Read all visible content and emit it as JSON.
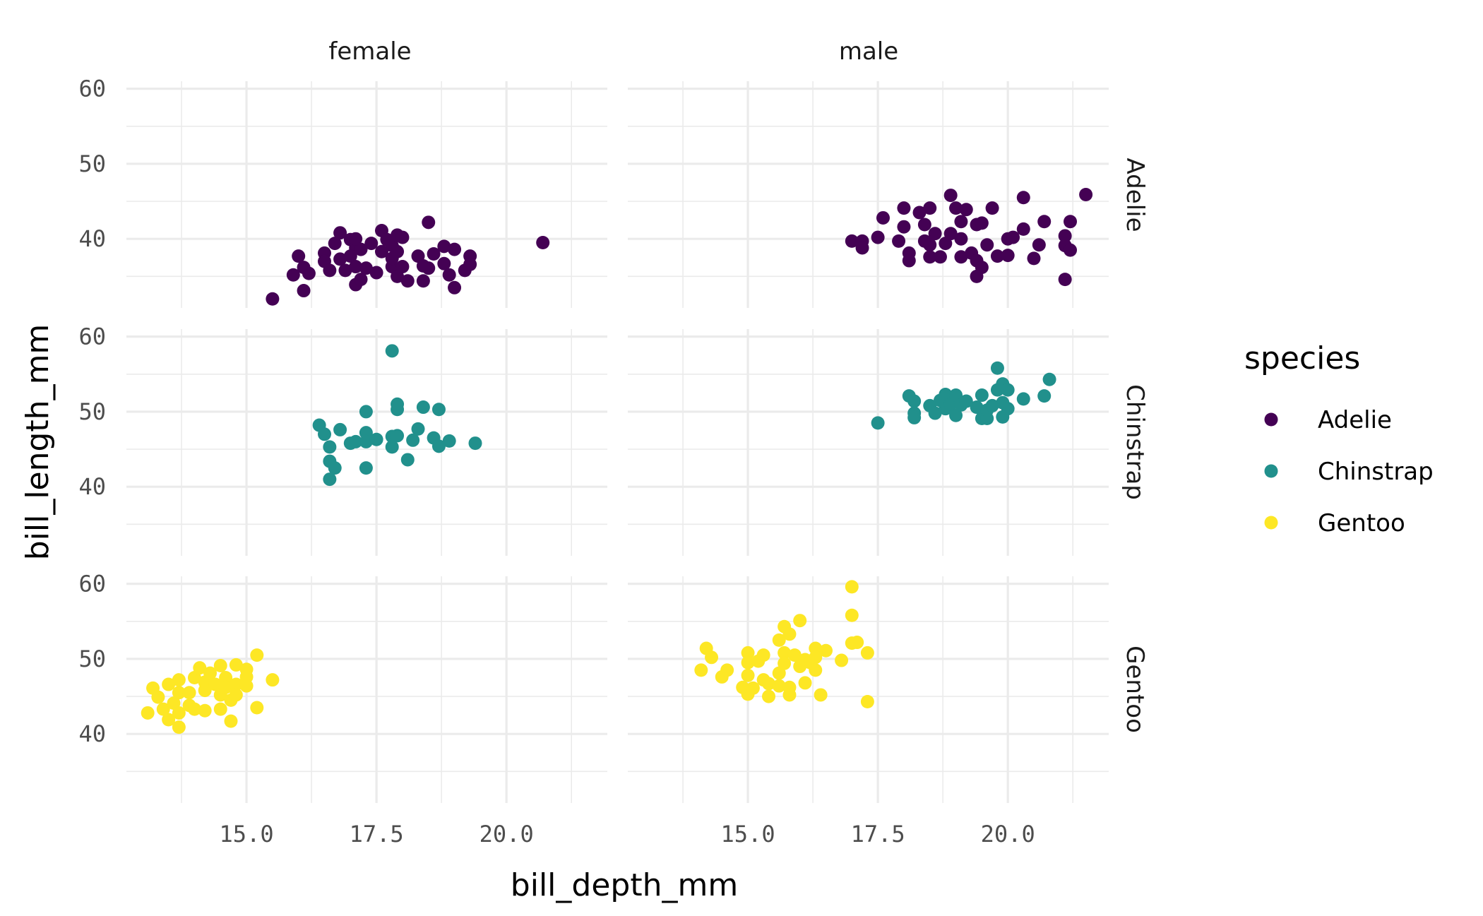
{
  "chart_data": {
    "type": "scatter",
    "title": "",
    "xlabel": "bill_depth_mm",
    "ylabel": "bill_length_mm",
    "xlim": [
      12.69,
      21.94
    ],
    "ylim": [
      30.8,
      61.0
    ],
    "x_ticks": [
      15.0,
      17.5,
      20.0
    ],
    "x_tick_labels": [
      "15.0",
      "17.5",
      "20.0"
    ],
    "x_minor": [
      12.5,
      13.75,
      16.25,
      18.75,
      21.25
    ],
    "y_ticks": [
      40,
      50,
      60
    ],
    "y_tick_labels": [
      "40",
      "50",
      "60"
    ],
    "y_minor": [
      35,
      45,
      55
    ],
    "grid": true,
    "facet_cols": [
      "female",
      "male"
    ],
    "facet_rows": [
      "Adelie",
      "Chinstrap",
      "Gentoo"
    ],
    "legend": {
      "title": "species",
      "position": "right",
      "entries": [
        {
          "label": "Adelie",
          "color": "#440154"
        },
        {
          "label": "Chinstrap",
          "color": "#21908C"
        },
        {
          "label": "Gentoo",
          "color": "#FDE725"
        }
      ]
    },
    "series": [
      {
        "name": "Adelie",
        "sex": "female",
        "color": "#440154",
        "points": [
          [
            15.5,
            32.0
          ],
          [
            16.1,
            33.1
          ],
          [
            15.9,
            35.2
          ],
          [
            16.0,
            37.7
          ],
          [
            16.2,
            35.4
          ],
          [
            16.1,
            36.2
          ],
          [
            16.5,
            38.1
          ],
          [
            16.5,
            37.0
          ],
          [
            16.6,
            35.8
          ],
          [
            16.7,
            39.4
          ],
          [
            16.8,
            40.8
          ],
          [
            16.8,
            37.3
          ],
          [
            16.9,
            35.8
          ],
          [
            17.0,
            39.9
          ],
          [
            17.1,
            33.9
          ],
          [
            17.2,
            34.6
          ],
          [
            17.1,
            38.8
          ],
          [
            17.2,
            38.6
          ],
          [
            17.1,
            40.0
          ],
          [
            17.0,
            37.7
          ],
          [
            17.1,
            36.3
          ],
          [
            17.3,
            36.1
          ],
          [
            17.5,
            35.5
          ],
          [
            17.4,
            39.4
          ],
          [
            17.6,
            41.1
          ],
          [
            17.6,
            38.3
          ],
          [
            17.7,
            39.9
          ],
          [
            17.8,
            39.1
          ],
          [
            17.9,
            40.5
          ],
          [
            18.0,
            40.2
          ],
          [
            17.9,
            38.3
          ],
          [
            17.8,
            36.3
          ],
          [
            17.9,
            35.0
          ],
          [
            18.0,
            36.3
          ],
          [
            18.1,
            34.4
          ],
          [
            17.8,
            37.4
          ],
          [
            18.3,
            37.7
          ],
          [
            18.4,
            34.4
          ],
          [
            18.4,
            36.4
          ],
          [
            18.5,
            42.2
          ],
          [
            18.6,
            38.0
          ],
          [
            18.5,
            36.1
          ],
          [
            18.8,
            39.0
          ],
          [
            18.8,
            36.7
          ],
          [
            18.9,
            35.2
          ],
          [
            19.0,
            33.5
          ],
          [
            19.0,
            38.6
          ],
          [
            19.2,
            35.8
          ],
          [
            19.3,
            37.7
          ],
          [
            19.3,
            36.6
          ],
          [
            20.7,
            39.5
          ]
        ]
      },
      {
        "name": "Adelie",
        "sex": "male",
        "color": "#440154",
        "points": [
          [
            17.0,
            39.7
          ],
          [
            17.2,
            39.7
          ],
          [
            17.2,
            38.8
          ],
          [
            17.5,
            40.2
          ],
          [
            17.6,
            42.8
          ],
          [
            18.0,
            44.1
          ],
          [
            17.9,
            39.7
          ],
          [
            18.0,
            41.6
          ],
          [
            18.1,
            38.1
          ],
          [
            18.1,
            37.1
          ],
          [
            18.3,
            43.5
          ],
          [
            18.4,
            41.9
          ],
          [
            18.5,
            44.1
          ],
          [
            18.4,
            39.7
          ],
          [
            18.5,
            37.6
          ],
          [
            18.6,
            40.7
          ],
          [
            18.5,
            39.2
          ],
          [
            18.7,
            37.6
          ],
          [
            18.9,
            45.8
          ],
          [
            18.8,
            39.4
          ],
          [
            18.9,
            40.7
          ],
          [
            19.0,
            44.1
          ],
          [
            19.1,
            42.3
          ],
          [
            19.1,
            40.0
          ],
          [
            19.1,
            37.6
          ],
          [
            19.2,
            43.9
          ],
          [
            19.3,
            38.1
          ],
          [
            19.4,
            37.1
          ],
          [
            19.4,
            41.9
          ],
          [
            19.5,
            42.1
          ],
          [
            19.5,
            36.2
          ],
          [
            19.4,
            35.0
          ],
          [
            19.6,
            39.2
          ],
          [
            19.7,
            44.1
          ],
          [
            19.8,
            37.7
          ],
          [
            20.0,
            40.0
          ],
          [
            20.0,
            37.8
          ],
          [
            20.1,
            40.2
          ],
          [
            20.3,
            41.3
          ],
          [
            20.3,
            45.5
          ],
          [
            20.5,
            37.4
          ],
          [
            20.6,
            39.2
          ],
          [
            20.7,
            42.3
          ],
          [
            21.1,
            40.4
          ],
          [
            21.2,
            42.3
          ],
          [
            21.1,
            39.1
          ],
          [
            21.2,
            38.5
          ],
          [
            21.1,
            34.6
          ],
          [
            21.5,
            45.9
          ]
        ]
      },
      {
        "name": "Chinstrap",
        "sex": "female",
        "color": "#21908C",
        "points": [
          [
            17.8,
            58.1
          ],
          [
            16.4,
            48.2
          ],
          [
            16.5,
            47.0
          ],
          [
            16.6,
            45.3
          ],
          [
            16.8,
            47.6
          ],
          [
            16.6,
            43.4
          ],
          [
            16.7,
            42.5
          ],
          [
            16.6,
            41.0
          ],
          [
            17.0,
            45.8
          ],
          [
            17.1,
            46.0
          ],
          [
            17.3,
            50.0
          ],
          [
            17.3,
            47.2
          ],
          [
            17.3,
            46.0
          ],
          [
            17.5,
            46.3
          ],
          [
            17.3,
            42.5
          ],
          [
            17.8,
            46.7
          ],
          [
            17.9,
            46.8
          ],
          [
            17.8,
            45.3
          ],
          [
            17.9,
            51.0
          ],
          [
            17.9,
            50.3
          ],
          [
            18.1,
            43.6
          ],
          [
            18.2,
            46.2
          ],
          [
            18.3,
            47.7
          ],
          [
            18.4,
            50.6
          ],
          [
            18.6,
            46.5
          ],
          [
            18.7,
            50.3
          ],
          [
            18.7,
            45.4
          ],
          [
            18.9,
            46.1
          ],
          [
            19.4,
            45.8
          ]
        ]
      },
      {
        "name": "Chinstrap",
        "sex": "male",
        "color": "#21908C",
        "points": [
          [
            17.5,
            48.5
          ],
          [
            18.1,
            52.1
          ],
          [
            18.2,
            51.4
          ],
          [
            18.2,
            49.8
          ],
          [
            18.2,
            49.2
          ],
          [
            18.5,
            50.8
          ],
          [
            18.6,
            49.8
          ],
          [
            18.7,
            51.5
          ],
          [
            18.8,
            52.3
          ],
          [
            18.8,
            50.4
          ],
          [
            18.9,
            51.0
          ],
          [
            19.0,
            52.2
          ],
          [
            19.0,
            49.5
          ],
          [
            19.1,
            50.9
          ],
          [
            19.2,
            51.4
          ],
          [
            19.4,
            50.6
          ],
          [
            19.5,
            52.2
          ],
          [
            19.5,
            49.1
          ],
          [
            19.6,
            49.1
          ],
          [
            19.6,
            50.2
          ],
          [
            19.7,
            50.8
          ],
          [
            19.8,
            55.8
          ],
          [
            19.8,
            52.9
          ],
          [
            19.9,
            53.7
          ],
          [
            20.0,
            52.9
          ],
          [
            19.9,
            51.2
          ],
          [
            20.0,
            50.4
          ],
          [
            19.9,
            49.3
          ],
          [
            20.3,
            51.7
          ],
          [
            20.7,
            52.1
          ],
          [
            20.8,
            54.3
          ]
        ]
      },
      {
        "name": "Gentoo",
        "sex": "female",
        "color": "#FDE725",
        "points": [
          [
            13.1,
            42.8
          ],
          [
            13.2,
            46.1
          ],
          [
            13.3,
            44.9
          ],
          [
            13.4,
            43.3
          ],
          [
            13.5,
            41.9
          ],
          [
            13.5,
            46.6
          ],
          [
            13.7,
            40.9
          ],
          [
            13.7,
            47.2
          ],
          [
            13.6,
            44.1
          ],
          [
            13.7,
            42.8
          ],
          [
            13.7,
            45.5
          ],
          [
            13.9,
            45.5
          ],
          [
            13.9,
            43.8
          ],
          [
            14.0,
            47.5
          ],
          [
            14.0,
            43.3
          ],
          [
            14.1,
            48.8
          ],
          [
            14.2,
            46.9
          ],
          [
            14.2,
            43.1
          ],
          [
            14.2,
            45.8
          ],
          [
            14.3,
            48.1
          ],
          [
            14.4,
            46.6
          ],
          [
            14.5,
            49.1
          ],
          [
            14.5,
            45.2
          ],
          [
            14.5,
            43.3
          ],
          [
            14.6,
            47.5
          ],
          [
            14.6,
            46.2
          ],
          [
            14.7,
            44.5
          ],
          [
            14.7,
            41.7
          ],
          [
            14.8,
            49.2
          ],
          [
            14.8,
            46.6
          ],
          [
            14.8,
            45.2
          ],
          [
            15.0,
            48.6
          ],
          [
            15.0,
            47.6
          ],
          [
            15.0,
            46.4
          ],
          [
            15.2,
            50.5
          ],
          [
            15.5,
            47.2
          ],
          [
            15.2,
            43.5
          ]
        ]
      },
      {
        "name": "Gentoo",
        "sex": "male",
        "color": "#FDE725",
        "points": [
          [
            14.1,
            48.5
          ],
          [
            14.2,
            51.4
          ],
          [
            14.3,
            50.2
          ],
          [
            14.5,
            47.6
          ],
          [
            14.6,
            48.5
          ],
          [
            14.9,
            46.2
          ],
          [
            15.0,
            45.3
          ],
          [
            15.0,
            50.8
          ],
          [
            15.0,
            49.5
          ],
          [
            15.0,
            47.8
          ],
          [
            15.1,
            46.1
          ],
          [
            15.2,
            49.7
          ],
          [
            15.3,
            50.5
          ],
          [
            15.3,
            47.2
          ],
          [
            15.4,
            46.7
          ],
          [
            15.4,
            45.0
          ],
          [
            15.6,
            52.5
          ],
          [
            15.6,
            46.4
          ],
          [
            15.6,
            48.1
          ],
          [
            15.7,
            54.3
          ],
          [
            15.8,
            53.3
          ],
          [
            15.7,
            50.8
          ],
          [
            15.7,
            49.4
          ],
          [
            15.8,
            46.2
          ],
          [
            15.8,
            45.2
          ],
          [
            15.9,
            50.5
          ],
          [
            16.0,
            55.1
          ],
          [
            16.0,
            49.0
          ],
          [
            16.1,
            49.9
          ],
          [
            16.1,
            46.8
          ],
          [
            16.2,
            49.5
          ],
          [
            16.3,
            51.4
          ],
          [
            16.3,
            48.5
          ],
          [
            16.3,
            50.2
          ],
          [
            16.4,
            45.2
          ],
          [
            16.5,
            51.1
          ],
          [
            16.8,
            49.8
          ],
          [
            17.0,
            59.6
          ],
          [
            17.0,
            55.8
          ],
          [
            17.0,
            52.1
          ],
          [
            17.1,
            52.2
          ],
          [
            17.3,
            50.8
          ],
          [
            17.3,
            44.3
          ]
        ]
      }
    ]
  }
}
